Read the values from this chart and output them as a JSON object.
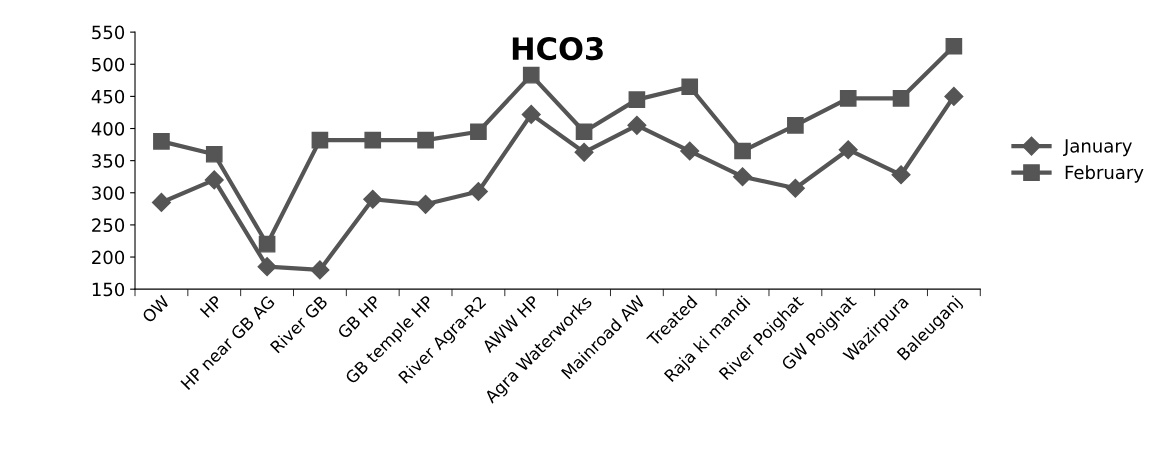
{
  "chart_data": {
    "type": "line",
    "title": "HCO3",
    "categories": [
      "OW",
      "HP",
      "HP near GB AG",
      "River GB",
      "GB HP",
      "GB temple HP",
      "River Agra-R2",
      "AWW HP",
      "Agra Waterworks",
      "Mainroad AW",
      "Treated",
      "Raja ki mandi",
      "River Poighat",
      "GW Poighat",
      "Wazirpura",
      "Baleuganj"
    ],
    "series": [
      {
        "name": "January",
        "color": "#555555",
        "marker": "diamond",
        "values": [
          285,
          320,
          185,
          180,
          290,
          282,
          302,
          422,
          363,
          405,
          365,
          325,
          307,
          367,
          328,
          450
        ]
      },
      {
        "name": "February",
        "color": "#555555",
        "marker": "square",
        "values": [
          380,
          360,
          220,
          382,
          382,
          382,
          395,
          483,
          395,
          445,
          465,
          365,
          405,
          447,
          447,
          528
        ]
      }
    ],
    "ylim": [
      150,
      550
    ],
    "yticks": [
      150,
      200,
      250,
      300,
      350,
      400,
      450,
      500,
      550
    ],
    "grid": false,
    "legend": "right",
    "line_style": "solid"
  }
}
